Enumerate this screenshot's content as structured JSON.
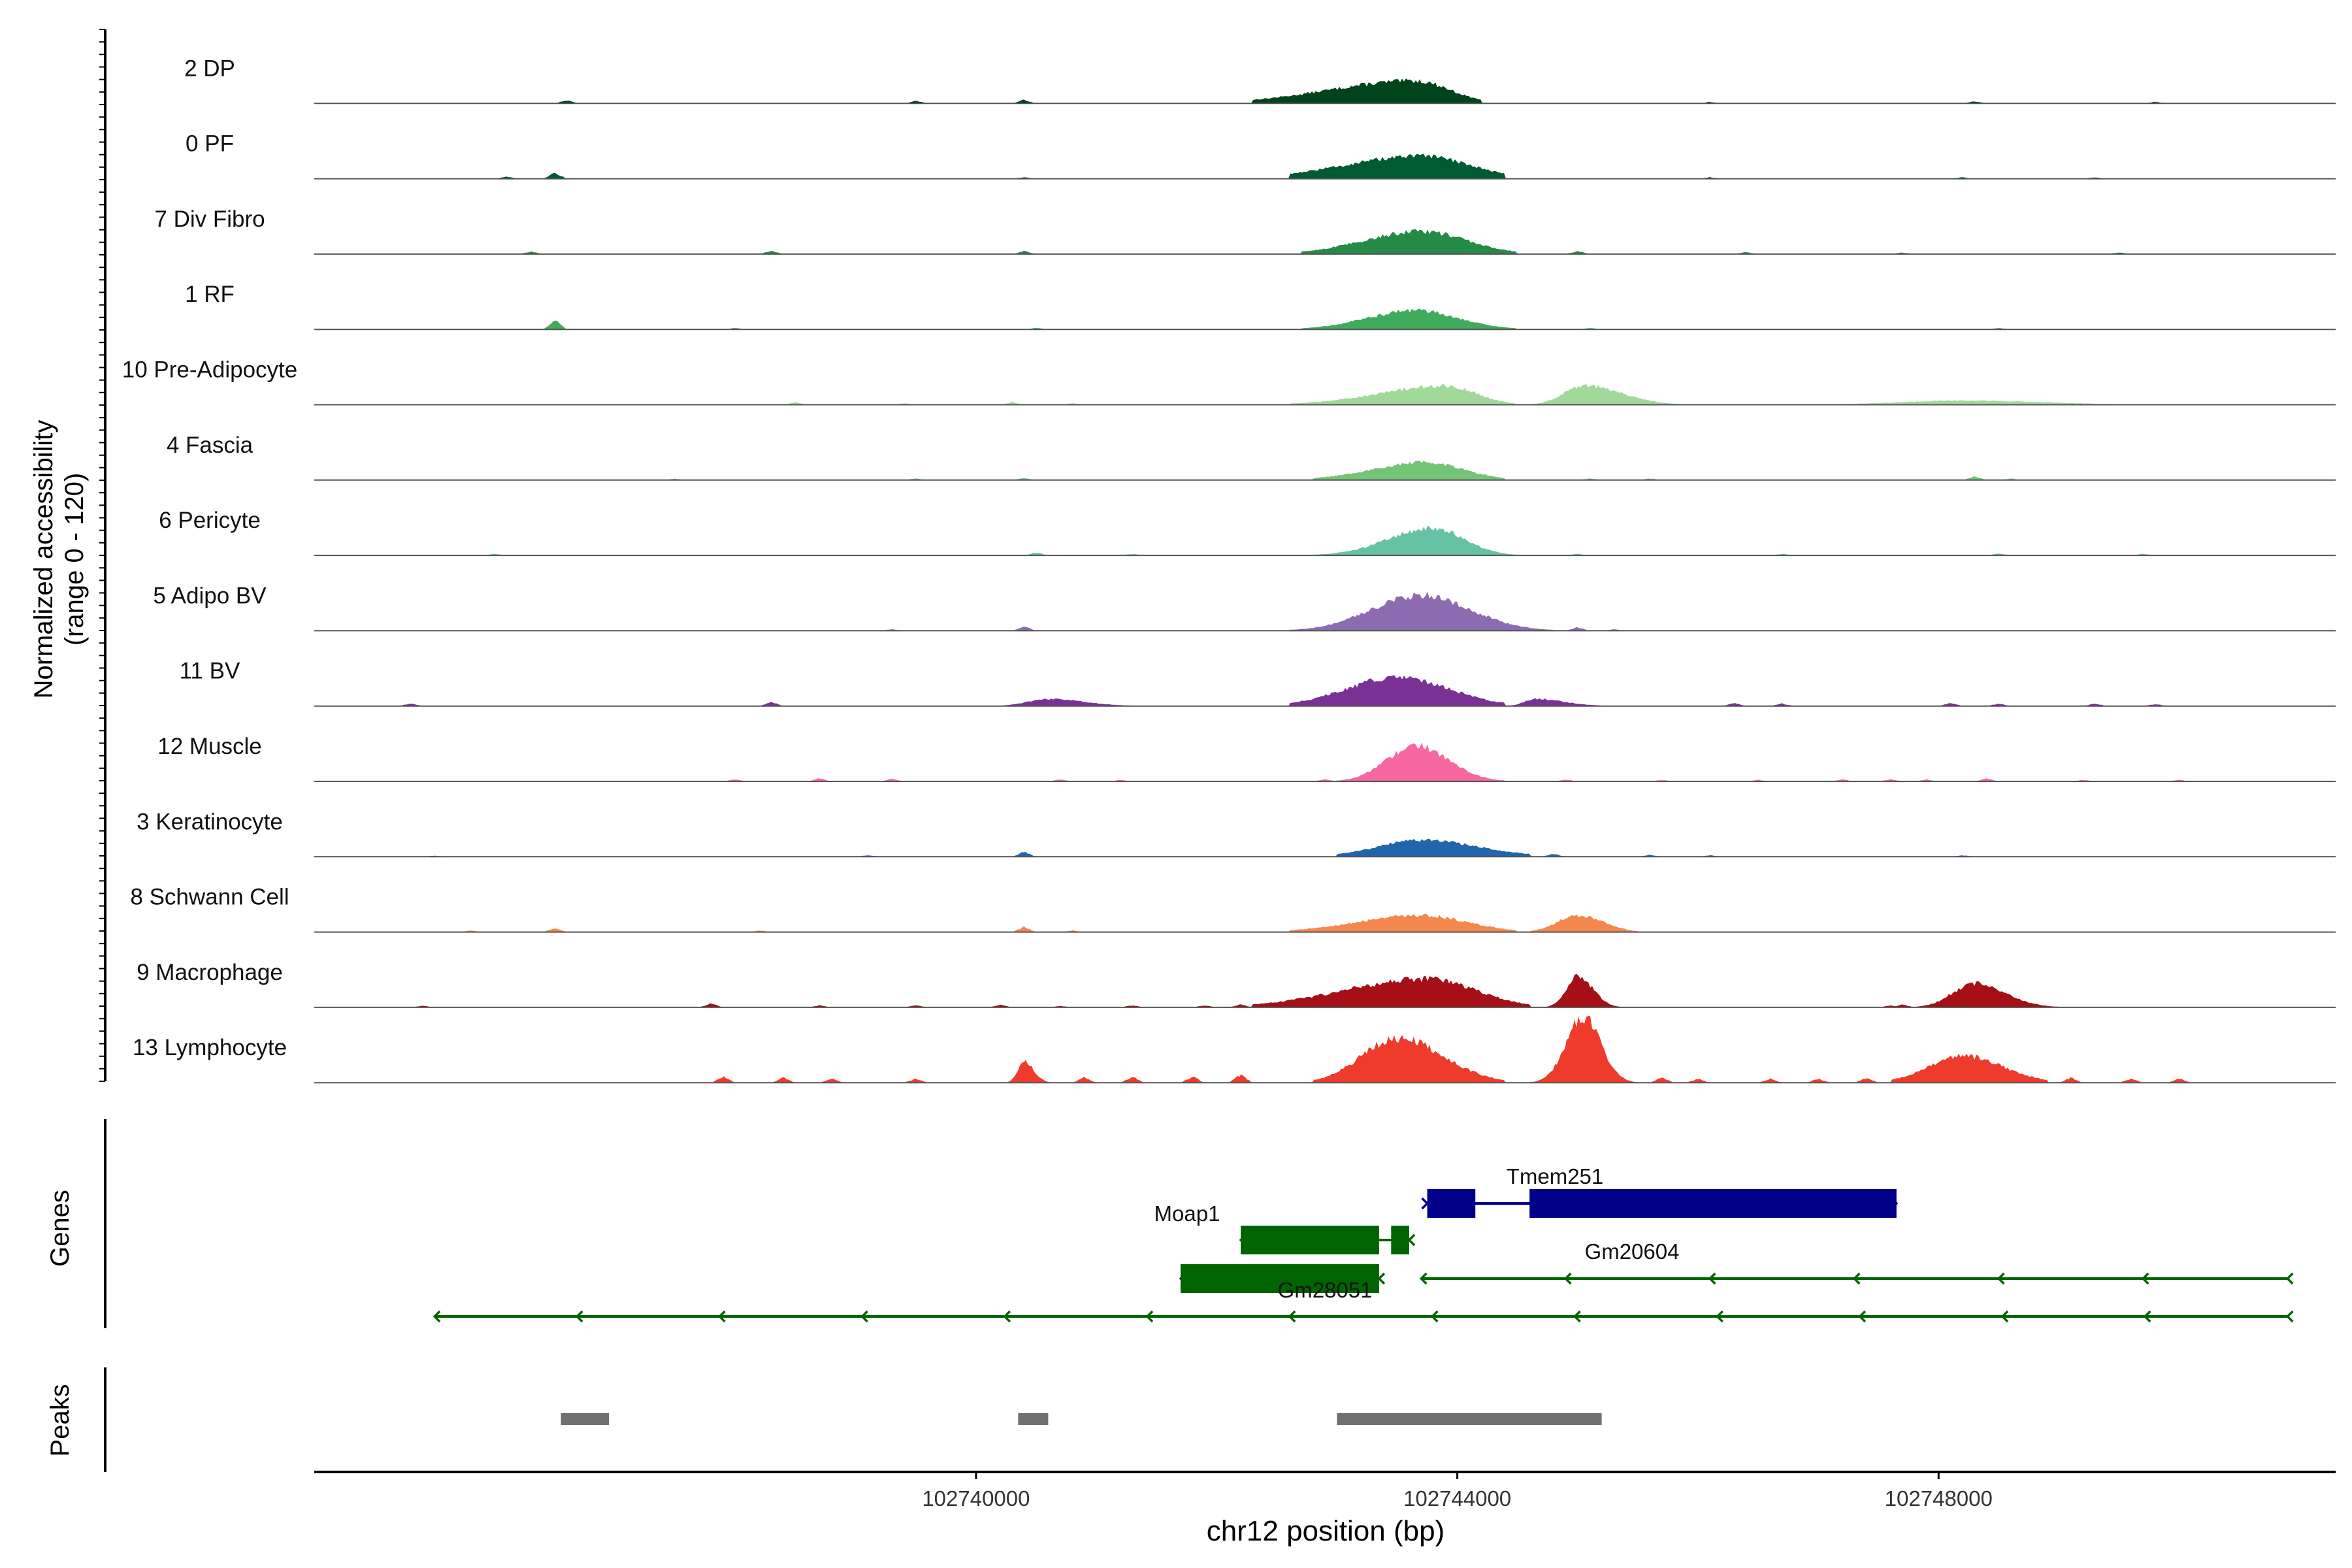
{
  "chart_data": {
    "type": "area",
    "title": "",
    "xlabel": "chr12 position (bp)",
    "ylabel_line1": "Normalized accessibility",
    "ylabel_line2": "(range 0 - 120)",
    "ylim": [
      0,
      120
    ],
    "xlim": [
      102734500,
      102751300
    ],
    "x_ticks": [
      102740000,
      102744000,
      102748000
    ],
    "x_tick_labels": [
      "102740000",
      "102744000",
      "102748000"
    ],
    "track_labels": {
      "genes": "Genes",
      "peaks": "Peaks"
    },
    "series": [
      {
        "name": "2 DP",
        "color": "#00441b",
        "profile": [
          [
            102742300,
            102744200,
            102743650,
            38,
            0.5
          ]
        ],
        "blips": [
          [
            102736600,
            6
          ],
          [
            102739500,
            5
          ],
          [
            102740400,
            7
          ],
          [
            102746100,
            3
          ],
          [
            102748300,
            4
          ],
          [
            102749800,
            3
          ]
        ]
      },
      {
        "name": "0 PF",
        "color": "#005a32",
        "profile": [
          [
            102742600,
            102744400,
            102743700,
            38,
            0.55
          ]
        ],
        "blips": [
          [
            102736500,
            12
          ],
          [
            102736100,
            4
          ],
          [
            102740400,
            3
          ],
          [
            102746100,
            3
          ],
          [
            102748200,
            3
          ],
          [
            102749300,
            3
          ]
        ]
      },
      {
        "name": "7 Div Fibro",
        "color": "#238b45",
        "profile": [
          [
            102742700,
            102744500,
            102743700,
            38,
            0.45
          ]
        ],
        "blips": [
          [
            102736300,
            5
          ],
          [
            102738300,
            7
          ],
          [
            102740400,
            6
          ],
          [
            102745000,
            6
          ],
          [
            102746400,
            4
          ],
          [
            102747700,
            3
          ],
          [
            102749500,
            3
          ]
        ]
      },
      {
        "name": "1 RF",
        "color": "#41ab5d",
        "profile": [
          [
            102742700,
            102744500,
            102743650,
            32,
            0.4
          ]
        ],
        "blips": [
          [
            102736500,
            18
          ],
          [
            102738000,
            3
          ],
          [
            102740500,
            3
          ],
          [
            102743100,
            8
          ],
          [
            102745100,
            3
          ],
          [
            102748500,
            3
          ]
        ]
      },
      {
        "name": "10 Pre-Adipocyte",
        "color": "#a1d99b",
        "profile": [
          [
            102742600,
            102744500,
            102743900,
            32,
            0.4
          ],
          [
            102744600,
            102745900,
            102745050,
            32,
            0.35
          ],
          [
            102747100,
            102749600,
            102748200,
            7,
            0.45
          ]
        ],
        "blips": [
          [
            102738500,
            5
          ],
          [
            102739400,
            3
          ],
          [
            102740300,
            5
          ],
          [
            102740800,
            3
          ]
        ]
      },
      {
        "name": "4 Fascia",
        "color": "#74c476",
        "profile": [
          [
            102742800,
            102744400,
            102743750,
            30,
            0.45
          ]
        ],
        "blips": [
          [
            102737500,
            3
          ],
          [
            102739500,
            3
          ],
          [
            102740400,
            4
          ],
          [
            102745100,
            3
          ],
          [
            102745600,
            3
          ],
          [
            102748300,
            7
          ],
          [
            102748600,
            3
          ]
        ]
      },
      {
        "name": "6 Pericyte",
        "color": "#66c2a5",
        "profile": [
          [
            102742800,
            102744500,
            102743800,
            46,
            0.35
          ]
        ],
        "blips": [
          [
            102736000,
            3
          ],
          [
            102740500,
            6
          ],
          [
            102741300,
            3
          ],
          [
            102745000,
            3
          ],
          [
            102746700,
            3
          ],
          [
            102748500,
            4
          ],
          [
            102749700,
            3
          ]
        ]
      },
      {
        "name": "5 Adipo BV",
        "color": "#8c6bb1",
        "profile": [
          [
            102742600,
            102744800,
            102743700,
            60,
            0.35
          ]
        ],
        "blips": [
          [
            102740400,
            8
          ],
          [
            102744300,
            8
          ],
          [
            102745000,
            7
          ],
          [
            102745300,
            3
          ],
          [
            102739300,
            3
          ]
        ]
      },
      {
        "name": "11 BV",
        "color": "#7a3196",
        "profile": [
          [
            102742600,
            102744400,
            102743500,
            48,
            0.45
          ],
          [
            102744400,
            102745300,
            102744650,
            12,
            0.35
          ],
          [
            102740200,
            102741300,
            102740600,
            12,
            0.4
          ]
        ],
        "blips": [
          [
            102735300,
            5
          ],
          [
            102738300,
            8
          ],
          [
            102746300,
            6
          ],
          [
            102746700,
            5
          ],
          [
            102748100,
            6
          ],
          [
            102748500,
            5
          ],
          [
            102749300,
            5
          ],
          [
            102749800,
            4
          ]
        ]
      },
      {
        "name": "12 Muscle",
        "color": "#f768a1",
        "profile": [
          [
            102743000,
            102744400,
            102743650,
            60,
            0.35
          ]
        ],
        "blips": [
          [
            102738000,
            4
          ],
          [
            102738700,
            6
          ],
          [
            102739300,
            5
          ],
          [
            102740700,
            4
          ],
          [
            102741200,
            3
          ],
          [
            102742900,
            4
          ],
          [
            102743200,
            8
          ],
          [
            102744300,
            4
          ],
          [
            102744900,
            4
          ],
          [
            102745700,
            3
          ],
          [
            102746500,
            3
          ],
          [
            102747200,
            4
          ],
          [
            102747600,
            4
          ],
          [
            102747900,
            4
          ],
          [
            102748400,
            6
          ],
          [
            102749200,
            3
          ],
          [
            102750000,
            3
          ]
        ]
      },
      {
        "name": "3 Keratinocyte",
        "color": "#2166ac",
        "profile": [
          [
            102743000,
            102744600,
            102743700,
            28,
            0.5
          ]
        ],
        "blips": [
          [
            102740400,
            10
          ],
          [
            102739100,
            3
          ],
          [
            102744800,
            6
          ],
          [
            102745600,
            4
          ],
          [
            102746100,
            3
          ],
          [
            102748200,
            3
          ],
          [
            102735500,
            2
          ]
        ]
      },
      {
        "name": "8 Schwann Cell",
        "color": "#f4874b",
        "profile": [
          [
            102742600,
            102744500,
            102743700,
            28,
            0.45
          ],
          [
            102744600,
            102745500,
            102745000,
            28,
            0.4
          ]
        ],
        "blips": [
          [
            102736500,
            8
          ],
          [
            102735800,
            3
          ],
          [
            102740400,
            10
          ],
          [
            102740800,
            3
          ],
          [
            102738200,
            3
          ]
        ]
      },
      {
        "name": "9 Macrophage",
        "color": "#a50f15",
        "profile": [
          [
            102742300,
            102744600,
            102743750,
            48,
            0.45
          ],
          [
            102744700,
            102745400,
            102745000,
            52,
            0.3
          ],
          [
            102747800,
            102749000,
            102748300,
            40,
            0.35
          ]
        ],
        "blips": [
          [
            102735400,
            3
          ],
          [
            102737800,
            8
          ],
          [
            102738700,
            4
          ],
          [
            102739500,
            4
          ],
          [
            102740200,
            5
          ],
          [
            102740700,
            3
          ],
          [
            102741300,
            4
          ],
          [
            102741900,
            4
          ],
          [
            102742200,
            6
          ],
          [
            102747600,
            4
          ],
          [
            102747700,
            6
          ]
        ]
      },
      {
        "name": "13 Lymphocyte",
        "color": "#ef3b2c",
        "profile": [
          [
            102742800,
            102744400,
            102743500,
            75,
            0.4
          ],
          [
            102744500,
            102745600,
            102745050,
            110,
            0.25
          ],
          [
            102747600,
            102748900,
            102748200,
            45,
            0.45
          ],
          [
            102740200,
            102740700,
            102740400,
            35,
            0.25
          ]
        ],
        "blips": [
          [
            102737900,
            12
          ],
          [
            102738400,
            10
          ],
          [
            102738800,
            8
          ],
          [
            102739500,
            8
          ],
          [
            102740900,
            10
          ],
          [
            102741300,
            12
          ],
          [
            102741800,
            12
          ],
          [
            102742200,
            16
          ],
          [
            102745700,
            10
          ],
          [
            102746000,
            8
          ],
          [
            102746600,
            8
          ],
          [
            102747000,
            8
          ],
          [
            102747400,
            10
          ],
          [
            102749100,
            10
          ],
          [
            102749600,
            8
          ],
          [
            102750000,
            8
          ]
        ]
      }
    ],
    "genes": [
      {
        "name": "Tmem251",
        "strand": "+",
        "row": 0,
        "color": "#00008b",
        "start": 102743750,
        "end": 102747650,
        "exons": [
          [
            102743750,
            102744150
          ],
          [
            102744600,
            102747650
          ]
        ]
      },
      {
        "name": "Moap1",
        "strand": "-",
        "row": 1,
        "color": "#006400",
        "start": 102742200,
        "end": 102743600,
        "exons": [
          [
            102742200,
            102743350
          ],
          [
            102743450,
            102743600
          ]
        ]
      },
      {
        "name": "Gm20604",
        "strand": "-",
        "row": 2,
        "color": "#006400",
        "start": 102743700,
        "end": 102750900,
        "exons": []
      },
      {
        "name": "Gm28051",
        "strand": "-",
        "row": 2,
        "color": "#006400",
        "start": 102741700,
        "end": 102743350,
        "exons": [
          [
            102741700,
            102743350
          ]
        ]
      },
      {
        "name": "",
        "strand": "-",
        "row": 3,
        "color": "#006400",
        "start": 102735500,
        "end": 102750900,
        "exons": []
      }
    ],
    "peaks": [
      [
        102736550,
        102736950
      ],
      [
        102740350,
        102740600
      ],
      [
        102743000,
        102745200
      ]
    ]
  }
}
